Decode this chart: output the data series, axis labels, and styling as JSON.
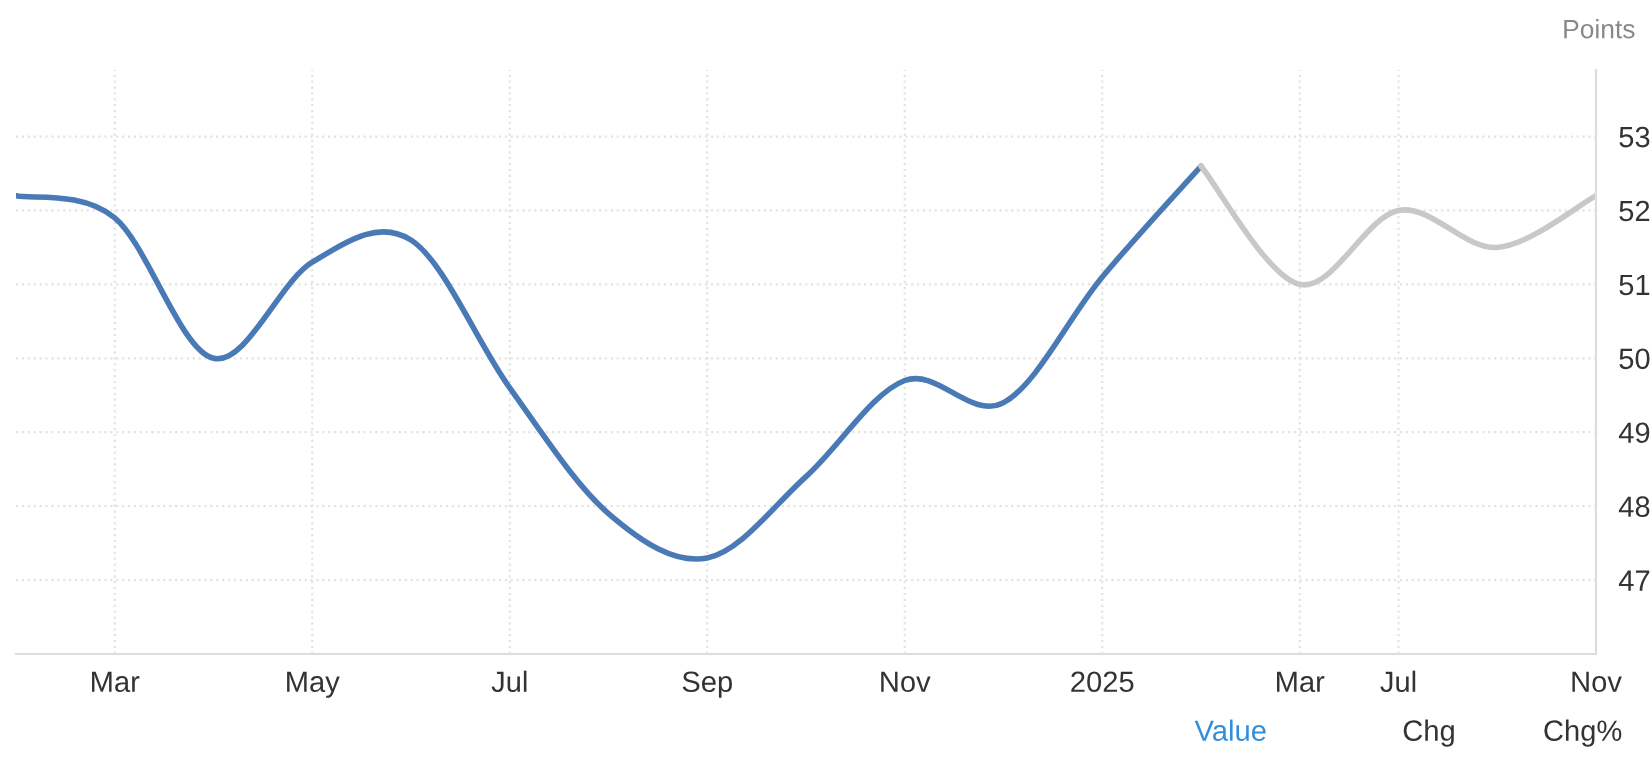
{
  "chart_data": {
    "type": "line",
    "categories": [
      null,
      "Mar",
      null,
      "May",
      null,
      "Jul",
      null,
      "Sep",
      null,
      "Nov",
      null,
      "2025",
      null,
      "Mar",
      "Jul",
      null,
      "Nov"
    ],
    "series": [
      {
        "color": "#4a7ab5",
        "values": [
          52.2,
          51.9,
          50.0,
          51.3,
          51.6,
          49.6,
          47.9,
          47.3,
          48.4,
          49.7,
          49.4,
          51.1,
          52.6,
          null,
          null,
          null,
          null
        ]
      },
      {
        "color": "#c8c8c8",
        "values": [
          null,
          null,
          null,
          null,
          null,
          null,
          null,
          null,
          null,
          null,
          null,
          null,
          52.6,
          51.0,
          52.0,
          51.5,
          52.2
        ]
      }
    ],
    "ylabel": "Points",
    "ylim": [
      46,
      53.9
    ],
    "yticks": [
      47,
      48,
      49,
      50,
      51,
      52,
      53
    ],
    "grid": true,
    "line_style": "solid",
    "marker": "none",
    "annotations": [
      "Value",
      "Chg",
      "Chg%"
    ]
  }
}
